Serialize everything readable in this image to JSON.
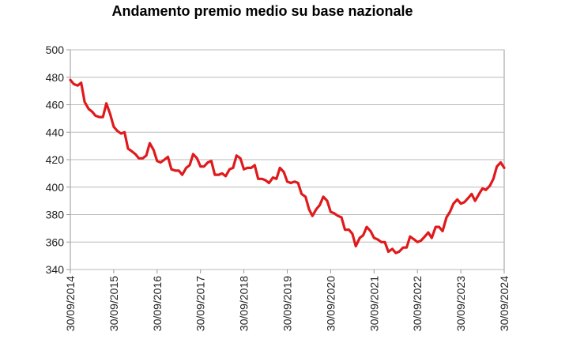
{
  "chart_data": {
    "type": "line",
    "title": "Andamento premio medio su base nazionale",
    "xlabel": "",
    "ylabel": "",
    "ylim": [
      340,
      500
    ],
    "yticks": [
      340,
      360,
      380,
      400,
      420,
      440,
      460,
      480,
      500
    ],
    "xlim": [
      2014.75,
      2024.75
    ],
    "xticks": [
      {
        "x": 2014.75,
        "label": "30/09/2014"
      },
      {
        "x": 2015.75,
        "label": "30/09/2015"
      },
      {
        "x": 2016.75,
        "label": "30/09/2016"
      },
      {
        "x": 2017.75,
        "label": "30/09/2017"
      },
      {
        "x": 2018.75,
        "label": "30/09/2018"
      },
      {
        "x": 2019.75,
        "label": "30/09/2019"
      },
      {
        "x": 2020.75,
        "label": "30/09/2020"
      },
      {
        "x": 2021.75,
        "label": "30/09/2021"
      },
      {
        "x": 2022.75,
        "label": "30/09/2022"
      },
      {
        "x": 2023.75,
        "label": "30/09/2023"
      },
      {
        "x": 2024.75,
        "label": "30/09/2024"
      }
    ],
    "grid": true,
    "legend": "none",
    "colors": {
      "line": "#e0191c",
      "grid": "#b9b9b9",
      "axis": "#9a9a9a"
    },
    "series": [
      {
        "name": "Premio medio",
        "x": [
          2014.75,
          2014.83,
          2014.92,
          2015.0,
          2015.08,
          2015.17,
          2015.25,
          2015.33,
          2015.42,
          2015.5,
          2015.58,
          2015.67,
          2015.75,
          2015.83,
          2015.92,
          2016.0,
          2016.08,
          2016.17,
          2016.25,
          2016.33,
          2016.42,
          2016.5,
          2016.58,
          2016.67,
          2016.75,
          2016.83,
          2016.92,
          2017.0,
          2017.08,
          2017.17,
          2017.25,
          2017.33,
          2017.42,
          2017.5,
          2017.58,
          2017.67,
          2017.75,
          2017.83,
          2017.92,
          2018.0,
          2018.08,
          2018.17,
          2018.25,
          2018.33,
          2018.42,
          2018.5,
          2018.58,
          2018.67,
          2018.75,
          2018.83,
          2018.92,
          2019.0,
          2019.08,
          2019.17,
          2019.25,
          2019.33,
          2019.42,
          2019.5,
          2019.58,
          2019.67,
          2019.75,
          2019.83,
          2019.92,
          2020.0,
          2020.08,
          2020.17,
          2020.25,
          2020.33,
          2020.42,
          2020.5,
          2020.58,
          2020.67,
          2020.75,
          2020.83,
          2020.92,
          2021.0,
          2021.08,
          2021.17,
          2021.25,
          2021.33,
          2021.42,
          2021.5,
          2021.58,
          2021.67,
          2021.75,
          2021.83,
          2021.92,
          2022.0,
          2022.08,
          2022.17,
          2022.25,
          2022.33,
          2022.42,
          2022.5,
          2022.58,
          2022.67,
          2022.75,
          2022.83,
          2022.92,
          2023.0,
          2023.08,
          2023.17,
          2023.25,
          2023.33,
          2023.42,
          2023.5,
          2023.58,
          2023.67,
          2023.75,
          2023.83,
          2023.92,
          2024.0,
          2024.08,
          2024.17,
          2024.25,
          2024.33,
          2024.42,
          2024.5,
          2024.58,
          2024.67,
          2024.75
        ],
        "values": [
          478,
          475,
          474,
          476,
          462,
          457,
          455,
          452,
          451,
          451,
          461,
          453,
          444,
          441,
          439,
          440,
          428,
          426,
          424,
          421,
          421,
          423,
          432,
          427,
          419,
          418,
          420,
          422,
          413,
          412,
          412,
          409,
          414,
          416,
          424,
          421,
          415,
          415,
          418,
          419,
          409,
          409,
          410,
          408,
          413,
          414,
          423,
          421,
          413,
          414,
          414,
          416,
          406,
          406,
          405,
          403,
          407,
          406,
          414,
          411,
          404,
          403,
          404,
          403,
          395,
          393,
          384,
          379,
          384,
          387,
          393,
          390,
          382,
          381,
          379,
          378,
          369,
          369,
          366,
          357,
          363,
          365,
          371,
          368,
          363,
          362,
          360,
          360,
          353,
          355,
          352,
          353,
          356,
          356,
          364,
          362,
          360,
          361,
          364,
          367,
          363,
          371,
          371,
          368,
          378,
          382,
          388,
          391,
          388,
          389,
          392,
          395,
          390,
          395,
          399,
          398,
          401,
          406,
          415,
          418,
          414
        ]
      }
    ]
  }
}
